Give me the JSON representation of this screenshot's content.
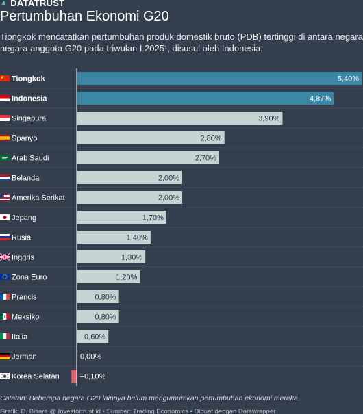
{
  "brand": {
    "name": "DATATRUST",
    "logo_icon": "triangle-logo-icon"
  },
  "header": {
    "title": "Pertumbuhan Ekonomi G20",
    "subtitle_line1": "Tiongkok mencatatkan pertumbuhan produk domestik bruto (PDB) tertinggi di antara negara-",
    "subtitle_line2": "negara anggota G20 pada triwulan I 2025¹, disusul oleh Indonesia."
  },
  "colors": {
    "background": "#343e4c",
    "highlight_bar": "#3c86a6",
    "default_bar": "#c7d3d3",
    "negative_bar": "#e0616a",
    "row_divider": "#4b5563",
    "zero_line": "#ffffff"
  },
  "chart_data": {
    "type": "bar",
    "orientation": "horizontal",
    "unit": "%",
    "xlim": [
      -0.1,
      5.4
    ],
    "categories": [
      "Tiongkok",
      "Indonesia",
      "Singapura",
      "Spanyol",
      "Arab Saudi",
      "Belanda",
      "Amerika Serikat",
      "Jepang",
      "Rusia",
      "Inggris",
      "Zona Euro",
      "Prancis",
      "Meksiko",
      "Italia",
      "Jerman",
      "Korea Selatan"
    ],
    "values": [
      5.4,
      4.87,
      3.9,
      2.8,
      2.7,
      2.0,
      2.0,
      1.7,
      1.4,
      1.3,
      1.2,
      0.8,
      0.8,
      0.6,
      0.0,
      -0.1
    ],
    "value_labels": [
      "5,40%",
      "4,87%",
      "3,90%",
      "2,80%",
      "2,70%",
      "2,00%",
      "2,00%",
      "1,70%",
      "1,40%",
      "1,30%",
      "1,20%",
      "0,80%",
      "0,80%",
      "0,60%",
      "0,00%",
      "–0,10%"
    ],
    "highlighted": [
      "Tiongkok",
      "Indonesia"
    ],
    "flag_icons": [
      "flag-china-icon",
      "flag-indonesia-icon",
      "flag-singapore-icon",
      "flag-spain-icon",
      "flag-saudi-arabia-icon",
      "flag-netherlands-icon",
      "flag-usa-icon",
      "flag-japan-icon",
      "flag-russia-icon",
      "flag-uk-icon",
      "flag-eu-icon",
      "flag-france-icon",
      "flag-mexico-icon",
      "flag-italy-icon",
      "flag-germany-icon",
      "flag-south-korea-icon"
    ]
  },
  "footer": {
    "note": "Catatan: Beberapa negara G20 lainnya belum mengumumkan pertumbuhan ekonomi mereka.",
    "credit": "Grafik: D. Bisara @ Investortrust.id • Sumber: Trading Economics • Dibuat dengan Datawrapper"
  }
}
